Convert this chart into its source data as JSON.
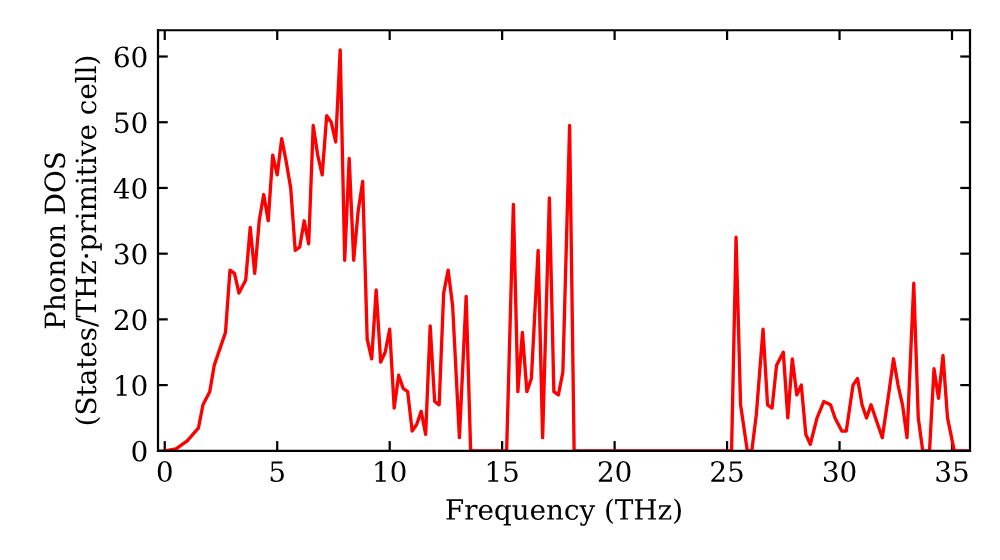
{
  "chart_data": {
    "type": "line",
    "xlabel": "Frequency (THz)",
    "ylabel": "Phonon DOS\n(States/THz·primitive cell)",
    "xlim": [
      -0.3,
      35.8
    ],
    "ylim": [
      0,
      64
    ],
    "xticks": [
      0,
      5,
      10,
      15,
      20,
      25,
      30,
      35
    ],
    "yticks": [
      0,
      10,
      20,
      30,
      40,
      50,
      60
    ],
    "grid": false,
    "marker": "none",
    "line_style": "solid",
    "series": [
      {
        "color": "#ff0000",
        "x": [
          0,
          0.5,
          1,
          1.5,
          1.7,
          2,
          2.2,
          2.5,
          2.7,
          2.9,
          3.1,
          3.3,
          3.6,
          3.8,
          4.0,
          4.2,
          4.4,
          4.6,
          4.8,
          5.0,
          5.2,
          5.4,
          5.6,
          5.8,
          6.0,
          6.2,
          6.4,
          6.6,
          6.8,
          7.0,
          7.2,
          7.4,
          7.6,
          7.8,
          8.0,
          8.2,
          8.4,
          8.6,
          8.8,
          9.0,
          9.2,
          9.4,
          9.6,
          9.8,
          10.0,
          10.2,
          10.4,
          10.6,
          10.8,
          11.0,
          11.2,
          11.4,
          11.6,
          11.8,
          12.0,
          12.2,
          12.4,
          12.6,
          12.8,
          13.1,
          13.4,
          13.6,
          15.2,
          15.5,
          15.7,
          15.9,
          16.1,
          16.3,
          16.6,
          16.8,
          17.1,
          17.3,
          17.5,
          17.7,
          18.0,
          18.2,
          25.2,
          25.4,
          25.6,
          25.9,
          26.1,
          26.3,
          26.6,
          26.8,
          27.0,
          27.2,
          27.5,
          27.7,
          27.9,
          28.1,
          28.3,
          28.5,
          28.7,
          29.0,
          29.3,
          29.6,
          29.8,
          30.1,
          30.3,
          30.6,
          30.8,
          31.0,
          31.2,
          31.4,
          31.6,
          31.9,
          32.2,
          32.4,
          32.6,
          32.8,
          33.0,
          33.3,
          33.5,
          33.7,
          34.0,
          34.2,
          34.4,
          34.6,
          34.8,
          35.1,
          35.8
        ],
        "values": [
          0,
          0.3,
          1.5,
          3.5,
          7,
          9,
          13,
          16,
          18,
          27.5,
          27,
          24,
          26,
          34,
          27,
          35,
          39,
          35,
          45,
          42,
          47.5,
          44,
          40,
          30.5,
          31,
          35,
          31.5,
          49.5,
          45,
          42,
          51,
          50,
          47,
          61,
          29,
          44.5,
          29,
          36.5,
          41,
          17,
          14,
          24.5,
          13.5,
          15,
          18.5,
          6.5,
          11.5,
          9.5,
          9,
          3,
          4,
          6,
          2.5,
          19,
          7.5,
          7,
          24,
          27.5,
          22,
          2,
          23.5,
          0,
          0,
          37.5,
          9,
          18,
          9,
          11,
          30.5,
          2,
          38.5,
          9,
          8.5,
          12,
          49.5,
          0,
          0,
          32.5,
          7,
          0,
          0,
          5.5,
          18.5,
          7,
          6.5,
          13,
          15,
          5,
          14,
          8.5,
          10,
          2.5,
          1,
          5,
          7.5,
          7,
          5,
          3,
          3,
          10,
          11,
          7,
          5,
          7,
          5,
          2,
          9,
          14,
          10,
          7,
          2,
          25.5,
          5,
          0,
          0,
          12.5,
          8,
          14.5,
          5,
          0,
          0
        ]
      }
    ]
  }
}
